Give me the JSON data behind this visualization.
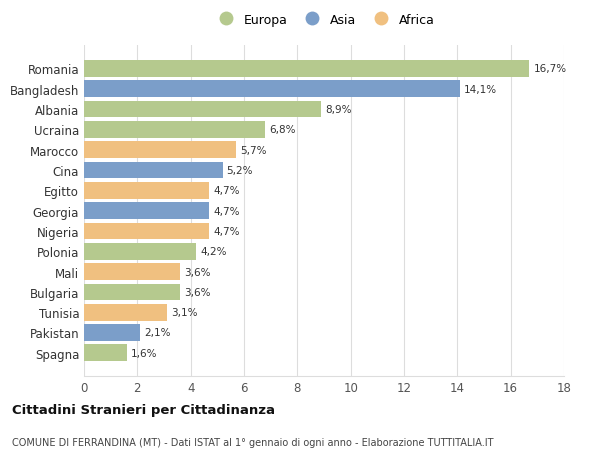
{
  "countries": [
    "Romania",
    "Bangladesh",
    "Albania",
    "Ucraina",
    "Marocco",
    "Cina",
    "Egitto",
    "Georgia",
    "Nigeria",
    "Polonia",
    "Mali",
    "Bulgaria",
    "Tunisia",
    "Pakistan",
    "Spagna"
  ],
  "values": [
    16.7,
    14.1,
    8.9,
    6.8,
    5.7,
    5.2,
    4.7,
    4.7,
    4.7,
    4.2,
    3.6,
    3.6,
    3.1,
    2.1,
    1.6
  ],
  "continents": [
    "Europa",
    "Asia",
    "Europa",
    "Europa",
    "Africa",
    "Asia",
    "Africa",
    "Asia",
    "Africa",
    "Europa",
    "Africa",
    "Europa",
    "Africa",
    "Asia",
    "Europa"
  ],
  "colors": {
    "Europa": "#b5c98e",
    "Asia": "#7b9ec9",
    "Africa": "#f0c080"
  },
  "legend_labels": [
    "Europa",
    "Asia",
    "Africa"
  ],
  "xlim": [
    0,
    18
  ],
  "xticks": [
    0,
    2,
    4,
    6,
    8,
    10,
    12,
    14,
    16,
    18
  ],
  "title": "Cittadini Stranieri per Cittadinanza",
  "subtitle": "COMUNE DI FERRANDINA (MT) - Dati ISTAT al 1° gennaio di ogni anno - Elaborazione TUTTITALIA.IT",
  "background_color": "#ffffff",
  "grid_color": "#dddddd"
}
